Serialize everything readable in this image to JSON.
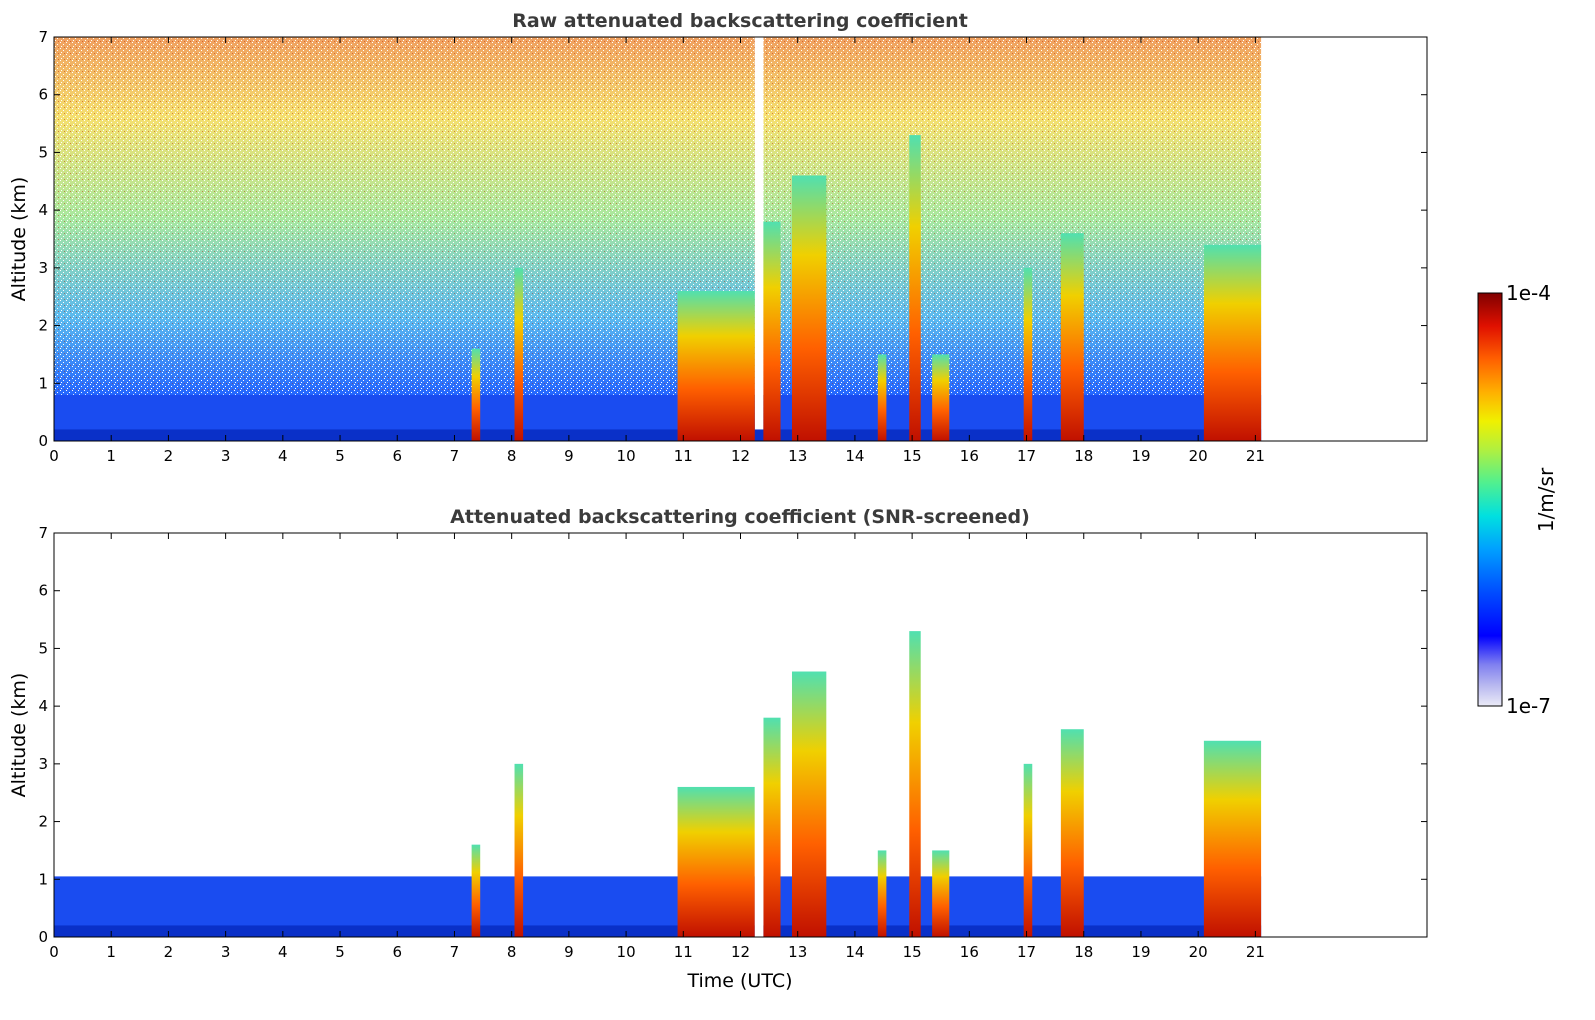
{
  "figure": {
    "xlabel": "Time (UTC)",
    "ylabel": "Altitude (km)"
  },
  "colorbar": {
    "label": "1/m/sr",
    "max_label": "1e-4",
    "min_label": "1e-7",
    "colors": [
      "#ebebf7",
      "#b8b8f0",
      "#8080f0",
      "#0000ff",
      "#0050ff",
      "#00a0ff",
      "#00e0e0",
      "#50f090",
      "#b0f040",
      "#f0f000",
      "#ffb000",
      "#ff6000",
      "#e01000",
      "#800000"
    ]
  },
  "chart_data": [
    {
      "type": "heatmap",
      "title": "Raw attenuated backscattering coefficient",
      "xlabel": "",
      "ylabel": "Altitude (km)",
      "xlim": [
        0,
        24
      ],
      "ylim": [
        0,
        7
      ],
      "xticks": [
        0,
        1,
        2,
        3,
        4,
        5,
        6,
        7,
        8,
        9,
        10,
        11,
        12,
        13,
        14,
        15,
        16,
        17,
        18,
        19,
        20,
        21
      ],
      "yticks": [
        0,
        1,
        2,
        3,
        4,
        5,
        6,
        7
      ],
      "data_extent_hours": [
        0,
        21.1
      ],
      "data_gap_hours": [
        12.25,
        12.4
      ],
      "scale": "log",
      "color_range": [
        1e-07,
        0.0001
      ],
      "boundary_layer_top_km": 0.8,
      "precipitation_columns": [
        {
          "start": 7.3,
          "end": 7.45,
          "top_km": 1.6
        },
        {
          "start": 8.05,
          "end": 8.2,
          "top_km": 3.0
        },
        {
          "start": 10.9,
          "end": 12.25,
          "top_km": 2.6
        },
        {
          "start": 12.4,
          "end": 12.7,
          "top_km": 3.8
        },
        {
          "start": 12.9,
          "end": 13.5,
          "top_km": 4.6
        },
        {
          "start": 14.4,
          "end": 14.55,
          "top_km": 1.5
        },
        {
          "start": 14.95,
          "end": 15.15,
          "top_km": 5.3
        },
        {
          "start": 15.35,
          "end": 15.65,
          "top_km": 1.5
        },
        {
          "start": 16.95,
          "end": 17.1,
          "top_km": 3.0
        },
        {
          "start": 17.6,
          "end": 18.0,
          "top_km": 3.6
        },
        {
          "start": 20.1,
          "end": 21.1,
          "top_km": 3.4
        }
      ]
    },
    {
      "type": "heatmap",
      "title": "Attenuated backscattering coefficient (SNR-screened)",
      "xlabel": "Time (UTC)",
      "ylabel": "Altitude (km)",
      "xlim": [
        0,
        24
      ],
      "ylim": [
        0,
        7
      ],
      "xticks": [
        0,
        1,
        2,
        3,
        4,
        5,
        6,
        7,
        8,
        9,
        10,
        11,
        12,
        13,
        14,
        15,
        16,
        17,
        18,
        19,
        20,
        21
      ],
      "yticks": [
        0,
        1,
        2,
        3,
        4,
        5,
        6,
        7
      ],
      "data_extent_hours": [
        0,
        21.1
      ],
      "data_gap_hours": [
        12.25,
        12.4
      ],
      "scale": "log",
      "color_range": [
        1e-07,
        0.0001
      ],
      "boundary_layer_top_km": 0.8,
      "precipitation_columns": [
        {
          "start": 7.3,
          "end": 7.45,
          "top_km": 1.6
        },
        {
          "start": 8.05,
          "end": 8.2,
          "top_km": 3.0
        },
        {
          "start": 10.9,
          "end": 12.25,
          "top_km": 2.6
        },
        {
          "start": 12.4,
          "end": 12.7,
          "top_km": 3.8
        },
        {
          "start": 12.9,
          "end": 13.5,
          "top_km": 4.6
        },
        {
          "start": 14.4,
          "end": 14.55,
          "top_km": 1.5
        },
        {
          "start": 14.95,
          "end": 15.15,
          "top_km": 5.3
        },
        {
          "start": 15.35,
          "end": 15.65,
          "top_km": 1.5
        },
        {
          "start": 16.95,
          "end": 17.1,
          "top_km": 3.0
        },
        {
          "start": 17.6,
          "end": 18.0,
          "top_km": 3.6
        },
        {
          "start": 20.1,
          "end": 21.1,
          "top_km": 3.4
        }
      ]
    }
  ]
}
